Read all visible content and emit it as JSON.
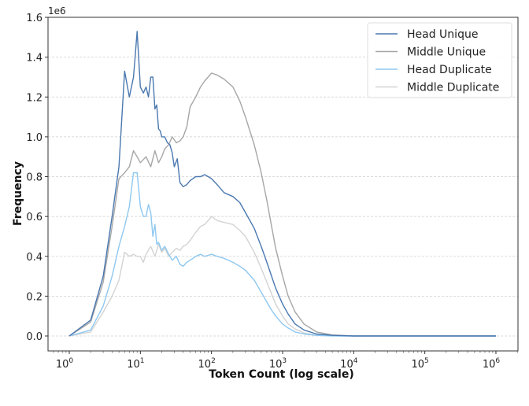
{
  "chart_data": {
    "type": "line",
    "title": "",
    "xlabel": "Token Count (log scale)",
    "ylabel": "Frequency",
    "xscale": "log",
    "xlim": [
      0.5,
      1500000
    ],
    "ylim": [
      -0.08,
      1.6
    ],
    "y_offset_label": "1e6",
    "x_ticks": [
      {
        "value": 1,
        "base": "10",
        "exp": "0"
      },
      {
        "value": 10,
        "base": "10",
        "exp": "1"
      },
      {
        "value": 100,
        "base": "10",
        "exp": "2"
      },
      {
        "value": 1000,
        "base": "10",
        "exp": "3"
      },
      {
        "value": 10000,
        "base": "10",
        "exp": "4"
      },
      {
        "value": 100000,
        "base": "10",
        "exp": "5"
      },
      {
        "value": 1000000,
        "base": "10",
        "exp": "6"
      }
    ],
    "y_ticks": [
      "0.0",
      "0.2",
      "0.4",
      "0.6",
      "0.8",
      "1.0",
      "1.2",
      "1.4",
      "1.6"
    ],
    "y_tick_values": [
      0.0,
      0.2,
      0.4,
      0.6,
      0.8,
      1.0,
      1.2,
      1.4,
      1.6
    ],
    "grid": {
      "y": true,
      "x": false,
      "style": "dashed"
    },
    "legend_position": "upper right",
    "series": [
      {
        "name": "Head Unique",
        "color": "#4a78b0",
        "x": [
          1,
          2,
          3,
          4,
          5,
          6,
          7,
          8,
          9,
          10,
          11,
          12,
          13,
          14,
          15,
          16,
          17,
          18,
          19,
          20,
          22,
          24,
          26,
          28,
          30,
          33,
          36,
          40,
          45,
          50,
          60,
          70,
          80,
          90,
          100,
          120,
          150,
          200,
          250,
          300,
          400,
          500,
          600,
          700,
          800,
          1000,
          1200,
          1500,
          2000,
          3000,
          5000,
          10000,
          20000,
          100000,
          1000000
        ],
        "y": [
          0.0,
          0.08,
          0.3,
          0.6,
          0.85,
          1.33,
          1.2,
          1.3,
          1.53,
          1.25,
          1.22,
          1.25,
          1.2,
          1.3,
          1.3,
          1.14,
          1.16,
          1.04,
          1.03,
          1.0,
          1.0,
          0.97,
          0.96,
          0.92,
          0.85,
          0.89,
          0.77,
          0.75,
          0.76,
          0.78,
          0.8,
          0.8,
          0.81,
          0.8,
          0.79,
          0.76,
          0.72,
          0.7,
          0.67,
          0.62,
          0.54,
          0.45,
          0.37,
          0.3,
          0.24,
          0.16,
          0.11,
          0.06,
          0.03,
          0.01,
          0.003,
          0.0,
          0.0,
          0.0,
          0.0
        ]
      },
      {
        "name": "Middle Unique",
        "color": "#a6a6a6",
        "x": [
          1,
          2,
          3,
          4,
          5,
          6,
          7,
          8,
          9,
          10,
          12,
          14,
          16,
          18,
          20,
          22,
          25,
          28,
          32,
          36,
          40,
          45,
          50,
          60,
          70,
          80,
          100,
          120,
          150,
          200,
          250,
          300,
          400,
          500,
          600,
          700,
          800,
          1000,
          1200,
          1500,
          2000,
          3000,
          5000,
          10000,
          20000,
          100000,
          1000000
        ],
        "y": [
          0.0,
          0.07,
          0.27,
          0.55,
          0.79,
          0.82,
          0.85,
          0.93,
          0.9,
          0.87,
          0.9,
          0.85,
          0.93,
          0.87,
          0.9,
          0.94,
          0.96,
          1.0,
          0.97,
          0.98,
          1.0,
          1.05,
          1.15,
          1.2,
          1.25,
          1.28,
          1.32,
          1.31,
          1.29,
          1.25,
          1.18,
          1.1,
          0.96,
          0.82,
          0.68,
          0.55,
          0.44,
          0.3,
          0.2,
          0.12,
          0.06,
          0.02,
          0.005,
          0.0,
          0.0,
          0.0,
          0.0
        ]
      },
      {
        "name": "Head Duplicate",
        "color": "#8ec8f0",
        "x": [
          1,
          2,
          3,
          4,
          5,
          6,
          7,
          8,
          9,
          10,
          11,
          12,
          13,
          14,
          15,
          16,
          17,
          18,
          20,
          22,
          25,
          28,
          32,
          36,
          40,
          45,
          50,
          60,
          70,
          80,
          100,
          120,
          150,
          200,
          250,
          300,
          400,
          500,
          600,
          700,
          800,
          1000,
          1200,
          1500,
          2000,
          3000,
          5000,
          10000,
          100000,
          1000000
        ],
        "y": [
          0.0,
          0.03,
          0.15,
          0.3,
          0.45,
          0.55,
          0.65,
          0.82,
          0.82,
          0.65,
          0.6,
          0.6,
          0.66,
          0.62,
          0.5,
          0.56,
          0.46,
          0.47,
          0.43,
          0.45,
          0.41,
          0.38,
          0.4,
          0.36,
          0.35,
          0.37,
          0.38,
          0.4,
          0.41,
          0.4,
          0.41,
          0.4,
          0.39,
          0.37,
          0.35,
          0.33,
          0.28,
          0.22,
          0.17,
          0.13,
          0.1,
          0.06,
          0.04,
          0.02,
          0.01,
          0.003,
          0.0,
          0.0,
          0.0,
          0.0
        ]
      },
      {
        "name": "Middle Duplicate",
        "color": "#d3d3d3",
        "x": [
          1,
          2,
          3,
          4,
          5,
          6,
          7,
          8,
          9,
          10,
          11,
          12,
          14,
          16,
          18,
          20,
          22,
          25,
          28,
          32,
          36,
          40,
          45,
          50,
          60,
          70,
          80,
          90,
          100,
          120,
          150,
          200,
          250,
          300,
          400,
          500,
          600,
          700,
          800,
          1000,
          1200,
          1500,
          2000,
          3000,
          5000,
          10000,
          100000,
          1000000
        ],
        "y": [
          0.0,
          0.02,
          0.12,
          0.2,
          0.28,
          0.42,
          0.4,
          0.41,
          0.4,
          0.4,
          0.37,
          0.41,
          0.45,
          0.4,
          0.46,
          0.42,
          0.44,
          0.4,
          0.42,
          0.44,
          0.43,
          0.45,
          0.46,
          0.48,
          0.52,
          0.55,
          0.56,
          0.58,
          0.6,
          0.58,
          0.57,
          0.56,
          0.53,
          0.5,
          0.42,
          0.34,
          0.27,
          0.21,
          0.16,
          0.1,
          0.06,
          0.035,
          0.015,
          0.004,
          0.001,
          0.0,
          0.0,
          0.0
        ]
      }
    ]
  },
  "legend": {
    "items": [
      {
        "label": "Head Unique",
        "color": "#4a78b0"
      },
      {
        "label": "Middle Unique",
        "color": "#a6a6a6"
      },
      {
        "label": "Head Duplicate",
        "color": "#8ec8f0"
      },
      {
        "label": "Middle Duplicate",
        "color": "#d3d3d3"
      }
    ]
  }
}
